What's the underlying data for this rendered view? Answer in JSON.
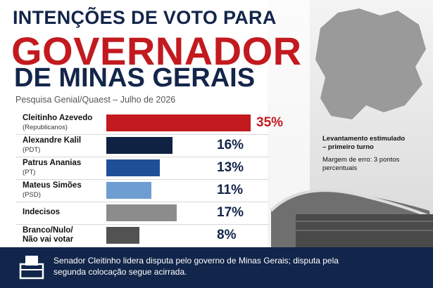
{
  "chart_data": {
    "type": "bar",
    "title": [
      "INTENÇÕES DE VOTO PARA",
      "GOVERNADOR",
      "DE MINAS GERAIS"
    ],
    "subtitle": "Pesquisa Genial/Quaest – Julho de 2026",
    "categories": [
      "Cleitinho Azevedo",
      "Alexandre Kalil",
      "Patrus Ananias",
      "Mateus Simões",
      "Indecisos",
      "Branco/Nulo/\nNão vai votar"
    ],
    "parties": [
      "(Republicanos)",
      "(PDT)",
      "(PT)",
      "(PSD)",
      null,
      null
    ],
    "values": [
      35,
      16,
      13,
      11,
      17,
      8
    ],
    "value_labels": [
      "35%",
      "16%",
      "13%",
      "11%",
      "17%",
      "8%"
    ],
    "colors": [
      "#c21a1f",
      "#0f2244",
      "#1f4f97",
      "#6e9dd2",
      "#8c8c8c",
      "#525252"
    ],
    "note": {
      "heading": "Levantamento estimulado – primeiro turno",
      "text": "Margem de erro: 3 pontos percentuais"
    },
    "footer": "Senador Cleitinho lidera disputa pelo governo de Minas Gerais; disputa pela segunda colocação segue acirrada."
  }
}
